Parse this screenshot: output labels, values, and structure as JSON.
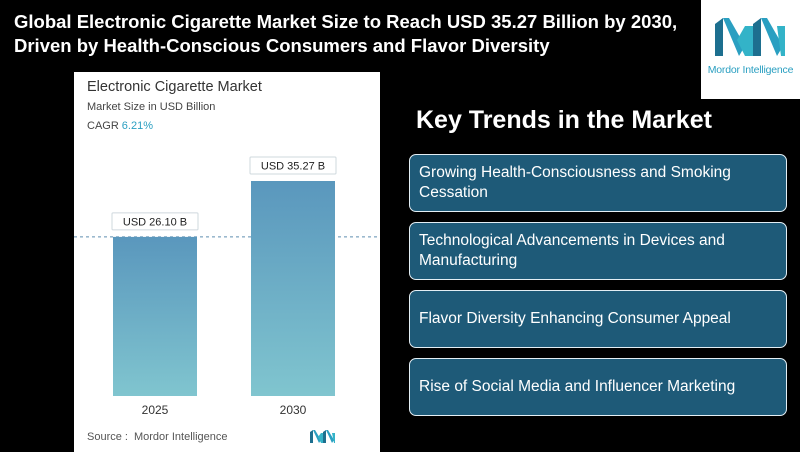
{
  "headline": "Global Electronic Cigarette Market Size to Reach USD 35.27 Billion by 2030, Driven by Health-Conscious Consumers and Flavor Diversity",
  "logo": {
    "brand": "Mordor Intelligence",
    "icon": "mordor-intelligence-logo-icon",
    "color": "#2a9fc1"
  },
  "chart": {
    "title": "Electronic Cigarette Market",
    "subtitle": "Market Size in USD Billion",
    "cagr_label": "CAGR",
    "cagr_value": "6.21%",
    "source_label": "Source :",
    "source_value": "Mordor Intelligence"
  },
  "chart_data": {
    "type": "bar",
    "title": "Electronic Cigarette Market",
    "ylabel": "Market Size in USD Billion",
    "categories": [
      "2025",
      "2030"
    ],
    "values": [
      26.1,
      35.27
    ],
    "data_labels": [
      "USD 26.10 B",
      "USD 35.27 B"
    ],
    "ylim": [
      0,
      35.27
    ],
    "grid": false,
    "reference_line_at": 26.1,
    "bar_gradient": [
      "#5a97bd",
      "#80c5cf"
    ]
  },
  "trends": {
    "title": "Key Trends in the Market",
    "items": [
      "Growing Health-Consciousness and Smoking Cessation",
      "Technological Advancements in Devices and Manufacturing",
      "Flavor Diversity Enhancing Consumer Appeal",
      "Rise of Social Media and Influencer Marketing"
    ]
  }
}
